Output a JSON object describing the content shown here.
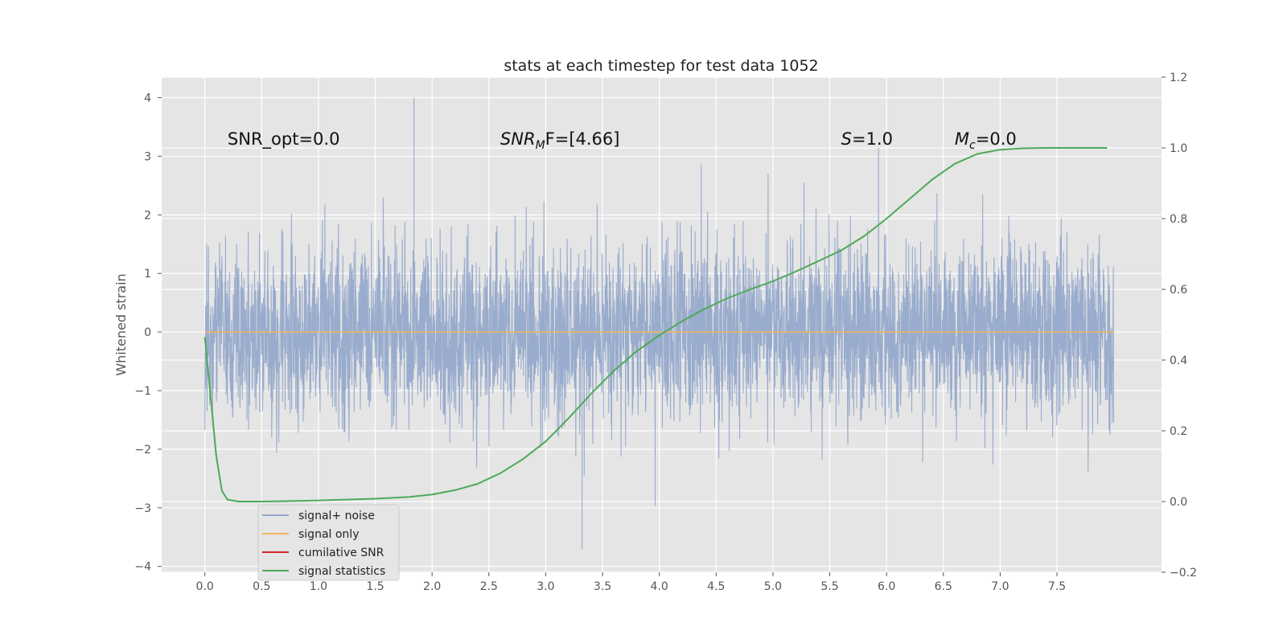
{
  "chart_data": {
    "type": "line",
    "title": "stats at each timestep for test data 1052",
    "ylabel": "Whitened strain",
    "y2label": "",
    "xlim": [
      -0.38,
      8.42
    ],
    "ylim": [
      -4.1,
      4.35
    ],
    "y2lim": [
      -0.2,
      1.2
    ],
    "xticks": [
      0.0,
      0.5,
      1.0,
      1.5,
      2.0,
      2.5,
      3.0,
      3.5,
      4.0,
      4.5,
      5.0,
      5.5,
      6.0,
      6.5,
      7.0,
      7.5
    ],
    "xtick_labels": [
      "0.0",
      "0.5",
      "1.0",
      "1.5",
      "2.0",
      "2.5",
      "3.0",
      "3.5",
      "4.0",
      "4.5",
      "5.0",
      "5.5",
      "6.0",
      "6.5",
      "7.0",
      "7.5"
    ],
    "yticks": [
      4,
      3,
      2,
      1,
      0,
      -1,
      -2,
      -3,
      -4
    ],
    "ytick_labels": [
      "4",
      "3",
      "2",
      "1",
      "0",
      "−1",
      "−2",
      "−3",
      "−4"
    ],
    "y2ticks": [
      1.2,
      1.0,
      0.8,
      0.6,
      0.4,
      0.2,
      0.0,
      -0.2
    ],
    "y2tick_labels": [
      "1.2",
      "1.0",
      "0.8",
      "0.6",
      "0.4",
      "0.2",
      "0.0",
      "−0.2"
    ],
    "grid": true,
    "legend_position": "lower-left",
    "annotations": [
      {
        "text": "SNR_opt=0.0",
        "x": 0.2,
        "y": 3.2
      },
      {
        "text_main": "SNR",
        "text_sub": "M",
        "text_rest": "F=[4.66]",
        "x": 2.6,
        "y": 3.2
      },
      {
        "text_main": "S",
        "text_rest": "=1.0",
        "x": 5.6,
        "y": 3.2
      },
      {
        "text_main": "M",
        "text_sub": "c",
        "text_rest": "=0.0",
        "x": 6.6,
        "y": 3.2
      }
    ],
    "series": [
      {
        "name": "signal+ noise",
        "color": "#95a9cb",
        "axis": "left",
        "style": "noise",
        "x_range": [
          0.0,
          8.0
        ],
        "typical_amplitude": 0.75,
        "peak_max": 4.0,
        "peak_min": -3.7
      },
      {
        "name": "signal only",
        "color": "#f2b45e",
        "axis": "left",
        "x": [
          0.0,
          8.0
        ],
        "y": [
          0.0,
          0.0
        ]
      },
      {
        "name": "cumilative SNR",
        "color": "#d62728",
        "axis": "left",
        "x": [],
        "y": []
      },
      {
        "name": "signal statistics",
        "color": "#4daa57",
        "axis": "right",
        "x": [
          0.0,
          0.05,
          0.1,
          0.15,
          0.2,
          0.3,
          0.5,
          1.0,
          1.5,
          1.8,
          2.0,
          2.2,
          2.4,
          2.6,
          2.8,
          3.0,
          3.2,
          3.4,
          3.6,
          3.8,
          4.0,
          4.2,
          4.4,
          4.6,
          4.8,
          5.0,
          5.2,
          5.4,
          5.6,
          5.8,
          6.0,
          6.2,
          6.4,
          6.6,
          6.8,
          7.0,
          7.2,
          7.4,
          7.6,
          7.94
        ],
        "y": [
          0.465,
          0.3,
          0.13,
          0.03,
          0.005,
          0.0,
          0.0,
          0.003,
          0.008,
          0.013,
          0.02,
          0.032,
          0.05,
          0.08,
          0.12,
          0.17,
          0.235,
          0.305,
          0.37,
          0.425,
          0.47,
          0.51,
          0.545,
          0.575,
          0.6,
          0.623,
          0.65,
          0.68,
          0.71,
          0.75,
          0.8,
          0.855,
          0.91,
          0.955,
          0.983,
          0.995,
          0.999,
          1.0,
          1.0,
          1.0
        ]
      }
    ]
  }
}
